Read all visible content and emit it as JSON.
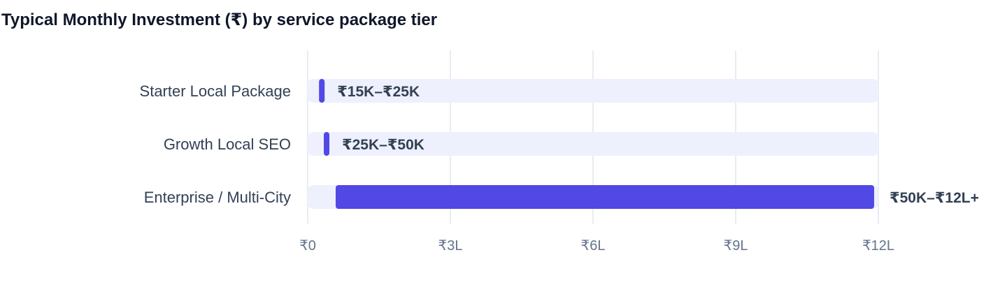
{
  "chart_data": {
    "type": "bar",
    "orientation": "horizontal",
    "title": "Typical Monthly Investment (₹) by service package tier",
    "xlabel": "",
    "ylabel": "",
    "categories": [
      "Starter Local Package",
      "Growth Local SEO",
      "Enterprise / Multi-City"
    ],
    "ranges": [
      [
        15000,
        25000
      ],
      [
        25000,
        50000
      ],
      [
        50000,
        1200000
      ]
    ],
    "value_labels": [
      "₹15K–₹25K",
      "₹25K–₹50K",
      "₹50K–₹12L+"
    ],
    "xlim": [
      0,
      1200000
    ],
    "x_ticks": [
      0,
      300000,
      600000,
      900000,
      1200000
    ],
    "x_tick_labels": [
      "₹0",
      "₹3L",
      "₹6L",
      "₹9L",
      "₹12L"
    ],
    "grid": true,
    "legend": "none",
    "colors": {
      "bar": "#5148e5",
      "track": "#eef1fd",
      "grid": "#e2e5ec"
    }
  }
}
